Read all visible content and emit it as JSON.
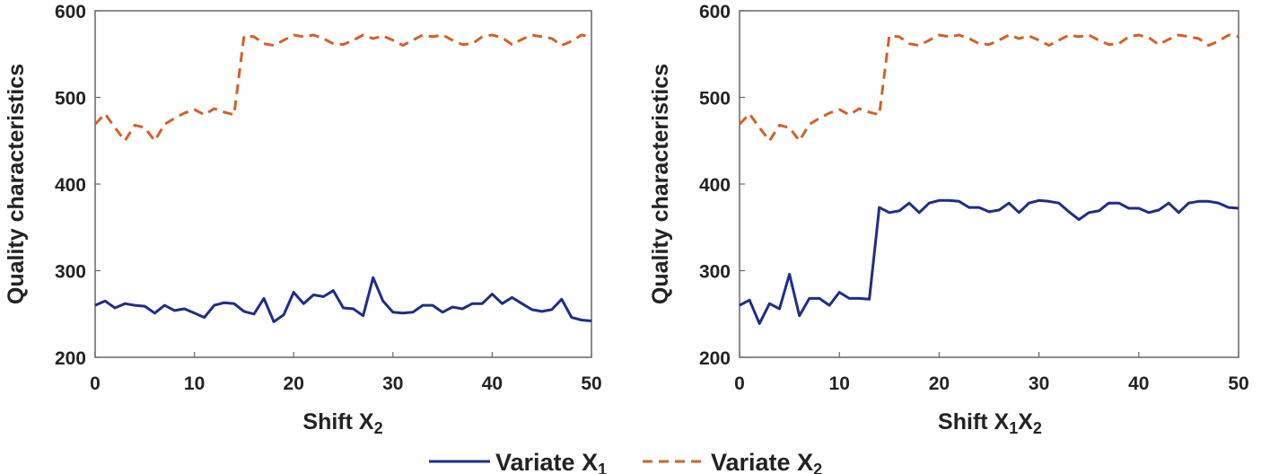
{
  "chart_data": [
    {
      "type": "line",
      "xlabel": "Shift X2",
      "xlabel_main": "Shift X",
      "xlabel_sub": "2",
      "ylabel": "Quality characteristics",
      "xlim": [
        0,
        50
      ],
      "ylim": [
        200,
        600
      ],
      "xticks": [
        0,
        10,
        20,
        30,
        40,
        50
      ],
      "yticks": [
        200,
        300,
        400,
        500,
        600
      ],
      "x": [
        0,
        1,
        2,
        3,
        4,
        5,
        6,
        7,
        8,
        9,
        10,
        11,
        12,
        13,
        14,
        15,
        16,
        17,
        18,
        19,
        20,
        21,
        22,
        23,
        24,
        25,
        26,
        27,
        28,
        29,
        30,
        31,
        32,
        33,
        34,
        35,
        36,
        37,
        38,
        39,
        40,
        41,
        42,
        43,
        44,
        45,
        46,
        47,
        48,
        49,
        50
      ],
      "series": [
        {
          "name": "Variate X1",
          "color": "#1f2d87",
          "style": "solid",
          "values": [
            260,
            265,
            257,
            262,
            260,
            259,
            251,
            260,
            254,
            256,
            251,
            246,
            260,
            263,
            262,
            253,
            250,
            268,
            241,
            249,
            275,
            262,
            272,
            270,
            277,
            257,
            256,
            248,
            292,
            265,
            252,
            251,
            252,
            260,
            260,
            252,
            258,
            256,
            262,
            262,
            273,
            262,
            269,
            262,
            255,
            253,
            255,
            267,
            246,
            243,
            242
          ]
        },
        {
          "name": "Variate X2",
          "color": "#d2612a",
          "style": "dashed",
          "values": [
            469,
            481,
            465,
            450,
            468,
            465,
            450,
            469,
            476,
            482,
            486,
            480,
            487,
            483,
            480,
            571,
            570,
            562,
            560,
            566,
            572,
            570,
            572,
            568,
            562,
            561,
            566,
            572,
            568,
            571,
            566,
            560,
            566,
            572,
            570,
            572,
            566,
            561,
            562,
            570,
            572,
            569,
            561,
            567,
            572,
            570,
            568,
            560,
            565,
            572,
            570
          ]
        }
      ]
    },
    {
      "type": "line",
      "xlabel": "Shift X1X2",
      "xlabel_main": "Shift X",
      "xlabel_sub1": "1",
      "xlabel_mid": "X",
      "xlabel_sub2": "2",
      "ylabel": "Quality characteristics",
      "xlim": [
        0,
        50
      ],
      "ylim": [
        200,
        600
      ],
      "xticks": [
        0,
        10,
        20,
        30,
        40,
        50
      ],
      "yticks": [
        200,
        300,
        400,
        500,
        600
      ],
      "x": [
        0,
        1,
        2,
        3,
        4,
        5,
        6,
        7,
        8,
        9,
        10,
        11,
        12,
        13,
        14,
        15,
        16,
        17,
        18,
        19,
        20,
        21,
        22,
        23,
        24,
        25,
        26,
        27,
        28,
        29,
        30,
        31,
        32,
        33,
        34,
        35,
        36,
        37,
        38,
        39,
        40,
        41,
        42,
        43,
        44,
        45,
        46,
        47,
        48,
        49,
        50
      ],
      "series": [
        {
          "name": "Variate X1",
          "color": "#1f2d87",
          "style": "solid",
          "values": [
            260,
            266,
            239,
            262,
            256,
            296,
            248,
            268,
            268,
            260,
            275,
            268,
            268,
            267,
            373,
            367,
            369,
            378,
            367,
            378,
            381,
            381,
            380,
            373,
            373,
            368,
            370,
            378,
            367,
            378,
            381,
            380,
            378,
            368,
            359,
            367,
            369,
            378,
            378,
            372,
            372,
            367,
            370,
            378,
            367,
            378,
            380,
            380,
            378,
            373,
            372
          ]
        },
        {
          "name": "Variate X2",
          "color": "#d2612a",
          "style": "dashed",
          "values": [
            469,
            481,
            465,
            450,
            468,
            465,
            450,
            469,
            476,
            482,
            486,
            480,
            487,
            483,
            480,
            571,
            570,
            562,
            560,
            566,
            572,
            570,
            572,
            568,
            562,
            561,
            566,
            572,
            568,
            571,
            566,
            560,
            566,
            572,
            570,
            572,
            566,
            561,
            562,
            570,
            572,
            569,
            561,
            567,
            572,
            570,
            568,
            560,
            565,
            572,
            570
          ]
        }
      ]
    }
  ],
  "legend": {
    "items": [
      {
        "label": "Variate X",
        "sub": "1",
        "color": "#1f2d87",
        "style": "solid"
      },
      {
        "label": "Variate X",
        "sub": "2",
        "color": "#d2612a",
        "style": "dashed"
      }
    ]
  }
}
